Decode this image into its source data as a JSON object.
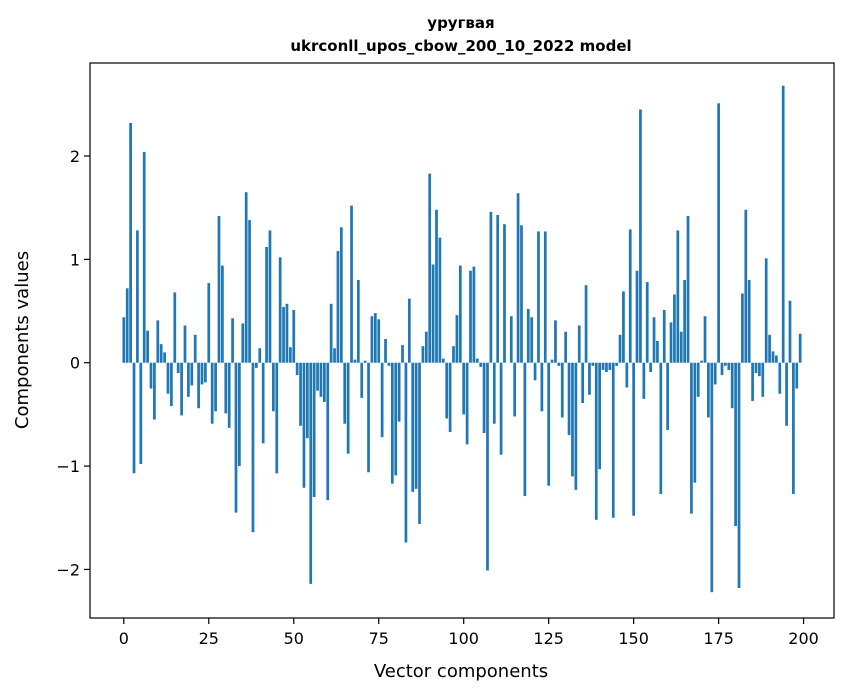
{
  "chart_data": {
    "type": "bar",
    "title_line1": "уругвая",
    "title_line2": "ukrconll_upos_cbow_200_10_2022 model",
    "xlabel": "Vector components",
    "ylabel": "Components values",
    "xlim": [
      -9.95,
      208.95
    ],
    "ylim": [
      -2.47,
      2.9
    ],
    "xticks": [
      0,
      25,
      50,
      75,
      100,
      125,
      150,
      175,
      200
    ],
    "xtick_labels": [
      "0",
      "25",
      "50",
      "75",
      "100",
      "125",
      "150",
      "175",
      "200"
    ],
    "yticks": [
      -2,
      -1,
      0,
      1,
      2
    ],
    "ytick_labels": [
      "−2",
      "−1",
      "0",
      "1",
      "2"
    ],
    "bar_color": "#1f77b4",
    "values": [
      0.44,
      0.72,
      2.32,
      -1.07,
      1.28,
      -0.98,
      2.04,
      0.31,
      -0.25,
      -0.55,
      0.41,
      0.18,
      0.1,
      -0.3,
      -0.42,
      0.68,
      -0.1,
      -0.51,
      0.36,
      -0.33,
      -0.22,
      0.27,
      -0.44,
      -0.21,
      -0.19,
      0.77,
      -0.59,
      -0.47,
      1.42,
      0.94,
      -0.49,
      -0.63,
      0.43,
      -1.45,
      -1.0,
      0.38,
      1.65,
      1.38,
      -1.64,
      -0.05,
      0.14,
      -0.78,
      1.12,
      1.28,
      -0.47,
      -1.07,
      1.02,
      0.54,
      0.57,
      0.15,
      0.51,
      -0.12,
      -0.61,
      -1.21,
      -0.73,
      -2.14,
      -1.3,
      -0.27,
      -0.33,
      -0.38,
      -1.33,
      0.57,
      0.14,
      1.08,
      1.31,
      -0.59,
      -0.88,
      1.52,
      0.03,
      0.8,
      -0.34,
      0.02,
      -1.06,
      0.45,
      0.48,
      0.42,
      -0.72,
      0.23,
      -0.03,
      -1.17,
      -1.09,
      -0.57,
      0.17,
      -1.74,
      0.62,
      -1.25,
      -1.22,
      -1.56,
      0.16,
      0.3,
      1.83,
      0.95,
      1.48,
      1.21,
      0.04,
      -0.54,
      -0.67,
      0.16,
      0.46,
      0.94,
      -0.5,
      -0.79,
      0.89,
      0.93,
      0.04,
      -0.04,
      -0.68,
      -2.01,
      1.46,
      -0.59,
      1.43,
      -0.89,
      1.34,
      0.0,
      0.45,
      -0.52,
      1.64,
      1.33,
      -1.29,
      0.52,
      0.44,
      -0.17,
      1.27,
      -0.47,
      1.27,
      -1.19,
      0.03,
      0.41,
      -0.03,
      -0.53,
      0.3,
      -0.7,
      -1.1,
      -1.23,
      0.36,
      -0.39,
      0.75,
      -0.31,
      -0.03,
      -1.52,
      -1.03,
      -0.07,
      -0.09,
      -0.07,
      -1.5,
      -0.03,
      0.27,
      0.69,
      -0.24,
      1.29,
      -1.48,
      0.89,
      2.45,
      -0.35,
      0.78,
      -0.09,
      0.44,
      0.21,
      -1.27,
      0.51,
      -0.65,
      0.39,
      0.66,
      1.28,
      0.3,
      0.8,
      1.42,
      -1.46,
      -1.16,
      -0.33,
      0.02,
      0.45,
      -0.53,
      -2.22,
      -0.21,
      2.51,
      -0.12,
      -0.03,
      -0.07,
      -0.44,
      -1.58,
      -2.18,
      0.67,
      1.48,
      0.8,
      -0.37,
      -0.1,
      -0.13,
      -0.33,
      1.01,
      0.27,
      0.11,
      0.07,
      -0.3,
      2.68,
      -0.61,
      0.6,
      -1.27,
      -0.25,
      0.28
    ]
  }
}
